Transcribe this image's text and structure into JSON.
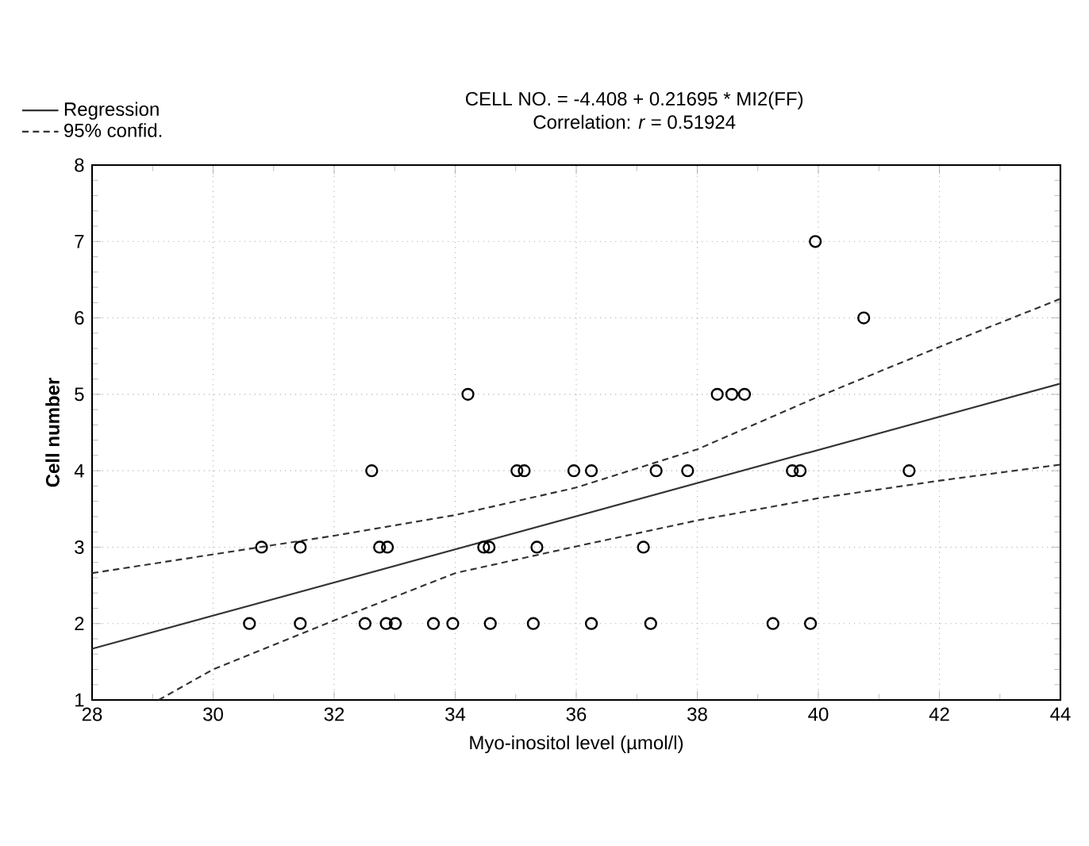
{
  "chart_data": {
    "type": "scatter",
    "title": "CELL NO. = -4.408 +  0.21695 * MI2(FF)",
    "subtitle": "Correlation: *r* = 0.51924",
    "xlabel": "Myo-inositol level (µmol/l)",
    "ylabel": "Cell number",
    "xlim": [
      28,
      44
    ],
    "xticks": [
      28,
      30,
      32,
      34,
      36,
      38,
      40,
      42,
      44
    ],
    "ylim": [
      1,
      8
    ],
    "yticks": [
      1,
      2,
      3,
      4,
      5,
      6,
      7,
      8
    ],
    "grid": true,
    "legend": "top left",
    "series": [
      {
        "color": "#000000",
        "marker": "circle",
        "x": [
          30.6,
          31.44,
          32.51,
          32.86,
          33.01,
          33.64,
          33.96,
          34.58,
          35.29,
          36.25,
          37.23,
          39.25,
          39.87,
          30.8,
          31.44,
          32.75,
          32.88,
          34.47,
          34.56,
          35.35,
          37.11,
          32.62,
          35.02,
          35.14,
          35.96,
          36.25,
          37.32,
          37.84,
          39.57,
          39.7,
          41.5,
          34.21,
          38.33,
          38.57,
          38.78,
          40.75,
          39.95
        ],
        "values": [
          2,
          2,
          2,
          2,
          2,
          2,
          2,
          2,
          2,
          2,
          2,
          2,
          2,
          3,
          3,
          3,
          3,
          3,
          3,
          3,
          3,
          4,
          4,
          4,
          4,
          4,
          4,
          4,
          4,
          4,
          4,
          5,
          5,
          5,
          5,
          6,
          7
        ]
      },
      {
        "type": "line",
        "name": "Regression",
        "color": "#333333",
        "line_style": "solid",
        "x": [
          28,
          44
        ],
        "values": [
          1.67,
          5.14
        ]
      },
      {
        "type": "line",
        "name": "95% confid.",
        "color": "#333333",
        "line_style": "dashed",
        "x": [
          28,
          32,
          34,
          36,
          38,
          40,
          42,
          44
        ],
        "values": [
          2.66,
          3.15,
          3.42,
          3.78,
          4.28,
          4.97,
          5.62,
          6.25
        ]
      },
      {
        "type": "line",
        "color": "#333333",
        "line_style": "dashed",
        "x": [
          29.1,
          30,
          32,
          34,
          36,
          38,
          40,
          42,
          44
        ],
        "values": [
          1.0,
          1.4,
          2.04,
          2.66,
          3.01,
          3.35,
          3.64,
          3.87,
          4.08
        ]
      }
    ]
  }
}
